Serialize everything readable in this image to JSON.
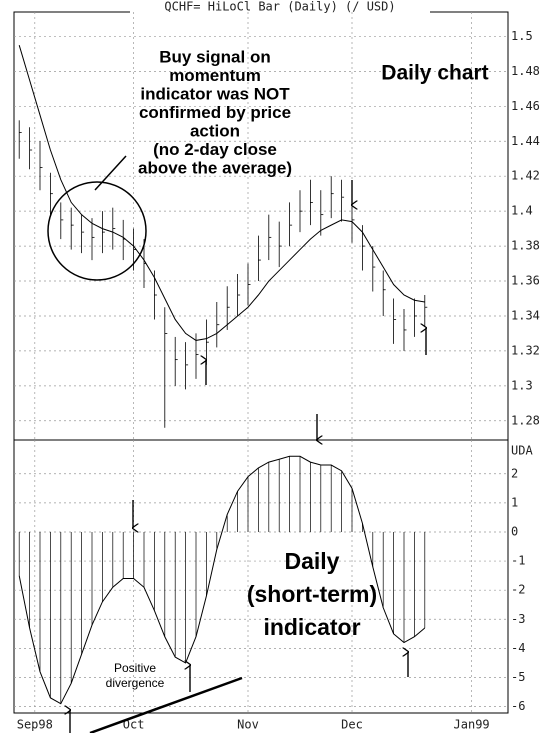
{
  "chart_data": [
    {
      "type": "hlc",
      "title": "QCHF= HiLoCl Bar (Daily) (/ USD)",
      "x": [
        1,
        3,
        5,
        7,
        9,
        11,
        13,
        15,
        17,
        19,
        21,
        23,
        25,
        27,
        29,
        31,
        33,
        35,
        37,
        39,
        41,
        43,
        45,
        47,
        49,
        51,
        53,
        55,
        57,
        59,
        61,
        63,
        65,
        67,
        69,
        71,
        73,
        75,
        77,
        79
      ],
      "high": [
        1.452,
        1.448,
        1.44,
        1.422,
        1.405,
        1.402,
        1.398,
        1.396,
        1.4,
        1.402,
        1.395,
        1.39,
        1.384,
        1.366,
        1.345,
        1.328,
        1.325,
        1.33,
        1.338,
        1.348,
        1.357,
        1.364,
        1.37,
        1.386,
        1.398,
        1.394,
        1.405,
        1.412,
        1.418,
        1.412,
        1.42,
        1.418,
        1.406,
        1.392,
        1.38,
        1.366,
        1.35,
        1.344,
        1.35,
        1.352
      ],
      "low": [
        1.43,
        1.424,
        1.412,
        1.398,
        1.384,
        1.378,
        1.376,
        1.372,
        1.376,
        1.378,
        1.372,
        1.366,
        1.356,
        1.338,
        1.276,
        1.3,
        1.298,
        1.304,
        1.312,
        1.322,
        1.332,
        1.34,
        1.346,
        1.36,
        1.372,
        1.368,
        1.38,
        1.388,
        1.392,
        1.386,
        1.396,
        1.394,
        1.382,
        1.366,
        1.354,
        1.34,
        1.324,
        1.32,
        1.328,
        1.334
      ],
      "close": [
        1.445,
        1.435,
        1.425,
        1.41,
        1.395,
        1.392,
        1.388,
        1.385,
        1.388,
        1.39,
        1.384,
        1.378,
        1.37,
        1.352,
        1.33,
        1.315,
        1.312,
        1.318,
        1.325,
        1.335,
        1.345,
        1.352,
        1.358,
        1.372,
        1.385,
        1.38,
        1.392,
        1.4,
        1.405,
        1.398,
        1.41,
        1.408,
        1.395,
        1.38,
        1.368,
        1.355,
        1.338,
        1.332,
        1.34,
        1.345
      ],
      "average": [
        1.495,
        1.475,
        1.455,
        1.435,
        1.418,
        1.405,
        1.398,
        1.393,
        1.39,
        1.388,
        1.385,
        1.38,
        1.372,
        1.362,
        1.35,
        1.338,
        1.33,
        1.326,
        1.327,
        1.33,
        1.335,
        1.34,
        1.345,
        1.352,
        1.36,
        1.366,
        1.372,
        1.378,
        1.384,
        1.389,
        1.392,
        1.395,
        1.394,
        1.388,
        1.378,
        1.368,
        1.358,
        1.352,
        1.349,
        1.348
      ],
      "xlim": [
        0,
        95
      ],
      "ylim": [
        1.269,
        1.514
      ],
      "yticks": [
        1.5,
        1.48,
        1.46,
        1.44,
        1.42,
        1.4,
        1.38,
        1.36,
        1.34,
        1.32,
        1.3,
        1.28
      ],
      "annotations": {
        "note": [
          "Buy signal on",
          "momentum",
          "indicator was NOT",
          "confirmed by price",
          "action",
          "(no 2-day close",
          "above the average)"
        ],
        "label": "Daily chart"
      },
      "grid": true
    },
    {
      "type": "histogram-line",
      "axis_label": "UDA",
      "x": [
        1,
        3,
        5,
        7,
        9,
        11,
        13,
        15,
        17,
        19,
        21,
        23,
        25,
        27,
        29,
        31,
        33,
        35,
        37,
        39,
        41,
        43,
        45,
        47,
        49,
        51,
        53,
        55,
        57,
        59,
        61,
        63,
        65,
        67,
        69,
        71,
        73,
        75,
        77,
        79
      ],
      "values": [
        -1.5,
        -3.3,
        -4.8,
        -5.7,
        -5.9,
        -5.2,
        -4.2,
        -3.2,
        -2.4,
        -1.9,
        -1.6,
        -1.6,
        -1.9,
        -2.7,
        -3.6,
        -4.3,
        -4.5,
        -3.6,
        -2.2,
        -0.6,
        0.6,
        1.4,
        1.9,
        2.2,
        2.4,
        2.5,
        2.6,
        2.6,
        2.4,
        2.3,
        2.3,
        2.1,
        1.5,
        0.3,
        -1.2,
        -2.6,
        -3.5,
        -3.8,
        -3.6,
        -3.3
      ],
      "xlim": [
        0,
        95
      ],
      "ylim": [
        -6.22,
        3.16
      ],
      "yticks": [
        2,
        1,
        0,
        -1,
        -2,
        -3,
        -4,
        -5,
        -6
      ],
      "xticks": [
        {
          "value": 4,
          "label": "Sep98"
        },
        {
          "value": 23,
          "label": "Oct"
        },
        {
          "value": 45,
          "label": "Nov"
        },
        {
          "value": 65,
          "label": "Dec"
        },
        {
          "value": 88,
          "label": "Jan99"
        }
      ],
      "annotations": {
        "label": [
          "Daily",
          "(short-term)",
          "indicator"
        ],
        "divergence": [
          "Positive",
          "divergence"
        ]
      },
      "grid": true
    }
  ]
}
